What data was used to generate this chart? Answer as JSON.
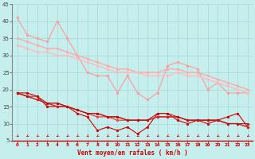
{
  "xlabel": "Vent moyen/en rafales ( km/h )",
  "xlim": [
    -0.5,
    23.5
  ],
  "ylim": [
    5,
    45
  ],
  "yticks": [
    5,
    10,
    15,
    20,
    25,
    30,
    35,
    40,
    45
  ],
  "xticks": [
    0,
    1,
    2,
    3,
    4,
    5,
    6,
    7,
    8,
    9,
    10,
    11,
    12,
    13,
    14,
    15,
    16,
    17,
    18,
    19,
    20,
    21,
    22,
    23
  ],
  "background_color": "#c5eeed",
  "grid_color": "#aadddd",
  "series_light": [
    {
      "x": [
        0,
        1,
        2,
        3,
        4,
        5,
        6,
        7,
        8,
        9,
        10,
        11,
        12,
        13,
        14,
        15,
        16,
        17,
        18,
        19,
        20,
        21,
        22,
        23
      ],
      "y": [
        41,
        36,
        35,
        34,
        40,
        35,
        30,
        25,
        24,
        24,
        19,
        24,
        19,
        17,
        19,
        27,
        28,
        27,
        26,
        20,
        22,
        19,
        19,
        19
      ],
      "color": "#ff9999",
      "lw": 0.8
    },
    {
      "x": [
        0,
        1,
        2,
        3,
        4,
        5,
        6,
        7,
        8,
        9,
        10,
        11,
        12,
        13,
        14,
        15,
        16,
        17,
        18,
        19,
        20,
        21,
        22,
        23
      ],
      "y": [
        35,
        34,
        33,
        32,
        32,
        31,
        30,
        29,
        28,
        27,
        26,
        26,
        25,
        25,
        25,
        26,
        26,
        25,
        25,
        24,
        23,
        22,
        21,
        20
      ],
      "color": "#ffaaaa",
      "lw": 1.0
    },
    {
      "x": [
        0,
        1,
        2,
        3,
        4,
        5,
        6,
        7,
        8,
        9,
        10,
        11,
        12,
        13,
        14,
        15,
        16,
        17,
        18,
        19,
        20,
        21,
        22,
        23
      ],
      "y": [
        33,
        32,
        31,
        31,
        30,
        30,
        29,
        28,
        27,
        26,
        25,
        25,
        25,
        24,
        24,
        24,
        25,
        24,
        24,
        23,
        22,
        21,
        20,
        19
      ],
      "color": "#ffbbbb",
      "lw": 1.0
    }
  ],
  "series_dark": [
    {
      "x": [
        0,
        1,
        2,
        3,
        4,
        5,
        6,
        7,
        8,
        9,
        10,
        11,
        12,
        13,
        14,
        15,
        16,
        17,
        18,
        19,
        20,
        21,
        22,
        23
      ],
      "y": [
        19,
        19,
        18,
        15,
        15,
        15,
        13,
        12,
        8,
        9,
        8,
        9,
        7,
        9,
        13,
        13,
        11,
        10,
        11,
        10,
        11,
        12,
        13,
        9
      ],
      "color": "#cc0000",
      "lw": 0.8
    },
    {
      "x": [
        0,
        1,
        2,
        3,
        4,
        5,
        6,
        7,
        8,
        9,
        10,
        11,
        12,
        13,
        14,
        15,
        16,
        17,
        18,
        19,
        20,
        21,
        22,
        23
      ],
      "y": [
        19,
        18,
        17,
        16,
        16,
        15,
        14,
        13,
        13,
        12,
        12,
        11,
        11,
        11,
        12,
        12,
        12,
        11,
        11,
        11,
        11,
        10,
        10,
        9
      ],
      "color": "#dd2222",
      "lw": 0.9
    },
    {
      "x": [
        0,
        1,
        2,
        3,
        4,
        5,
        6,
        7,
        8,
        9,
        10,
        11,
        12,
        13,
        14,
        15,
        16,
        17,
        18,
        19,
        20,
        21,
        22,
        23
      ],
      "y": [
        19,
        18,
        17,
        16,
        15,
        15,
        14,
        13,
        12,
        12,
        11,
        11,
        11,
        11,
        12,
        12,
        12,
        11,
        11,
        11,
        11,
        10,
        10,
        9
      ],
      "color": "#ee4444",
      "lw": 0.9
    },
    {
      "x": [
        0,
        1,
        2,
        3,
        4,
        5,
        6,
        7,
        8,
        9,
        10,
        11,
        12,
        13,
        14,
        15,
        16,
        17,
        18,
        19,
        20,
        21,
        22,
        23
      ],
      "y": [
        19,
        18,
        17,
        16,
        15,
        15,
        14,
        13,
        13,
        12,
        12,
        11,
        11,
        11,
        12,
        12,
        12,
        11,
        11,
        11,
        11,
        10,
        10,
        9
      ],
      "color": "#cc2222",
      "lw": 0.7
    },
    {
      "x": [
        0,
        1,
        2,
        3,
        4,
        5,
        6,
        7,
        8,
        9,
        10,
        11,
        12,
        13,
        14,
        15,
        16,
        17,
        18,
        19,
        20,
        21,
        22,
        23
      ],
      "y": [
        19,
        18,
        18,
        16,
        16,
        15,
        14,
        13,
        13,
        12,
        12,
        11,
        11,
        11,
        13,
        13,
        12,
        11,
        11,
        11,
        11,
        10,
        10,
        10
      ],
      "color": "#bb1111",
      "lw": 0.7
    }
  ],
  "arrow_color": "#cc0000",
  "marker_size": 2.0
}
